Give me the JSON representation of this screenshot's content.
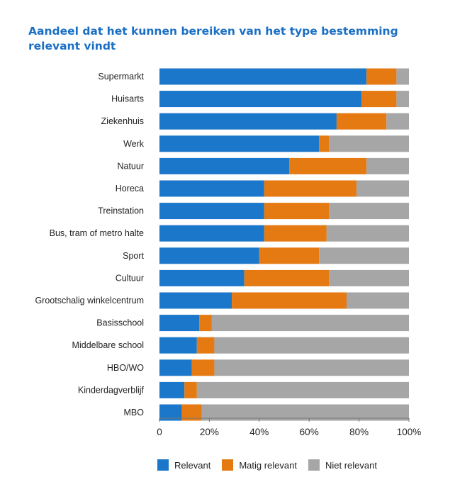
{
  "chart_data": {
    "type": "bar",
    "orientation": "horizontal",
    "stacked": true,
    "title": "Aandeel dat het kunnen bereiken van het type bestemming relevant vindt",
    "categories": [
      "Supermarkt",
      "Huisarts",
      "Ziekenhuis",
      "Werk",
      "Natuur",
      "Horeca",
      "Treinstation",
      "Bus, tram of metro halte",
      "Sport",
      "Cultuur",
      "Grootschalig winkelcentrum",
      "Basisschool",
      "Middelbare school",
      "HBO/WO",
      "Kinderdagverblijf",
      "MBO"
    ],
    "series": [
      {
        "name": "Relevant",
        "color": "#1a77c9",
        "values": [
          83,
          81,
          71,
          64,
          52,
          42,
          42,
          42,
          40,
          34,
          29,
          16,
          15,
          13,
          10,
          9
        ]
      },
      {
        "name": "Matig relevant",
        "color": "#e57a12",
        "values": [
          12,
          14,
          20,
          4,
          31,
          37,
          26,
          25,
          24,
          34,
          46,
          5,
          7,
          9,
          5,
          8
        ]
      },
      {
        "name": "Niet relevant",
        "color": "#a6a6a6",
        "values": [
          5,
          5,
          9,
          32,
          17,
          21,
          32,
          33,
          36,
          32,
          25,
          79,
          78,
          78,
          85,
          83
        ]
      }
    ],
    "xlim": [
      0,
      100
    ],
    "x_ticks": [
      "0",
      "20%",
      "40%",
      "60%",
      "80%",
      "100%"
    ],
    "grid": false,
    "legend_position": "bottom"
  }
}
